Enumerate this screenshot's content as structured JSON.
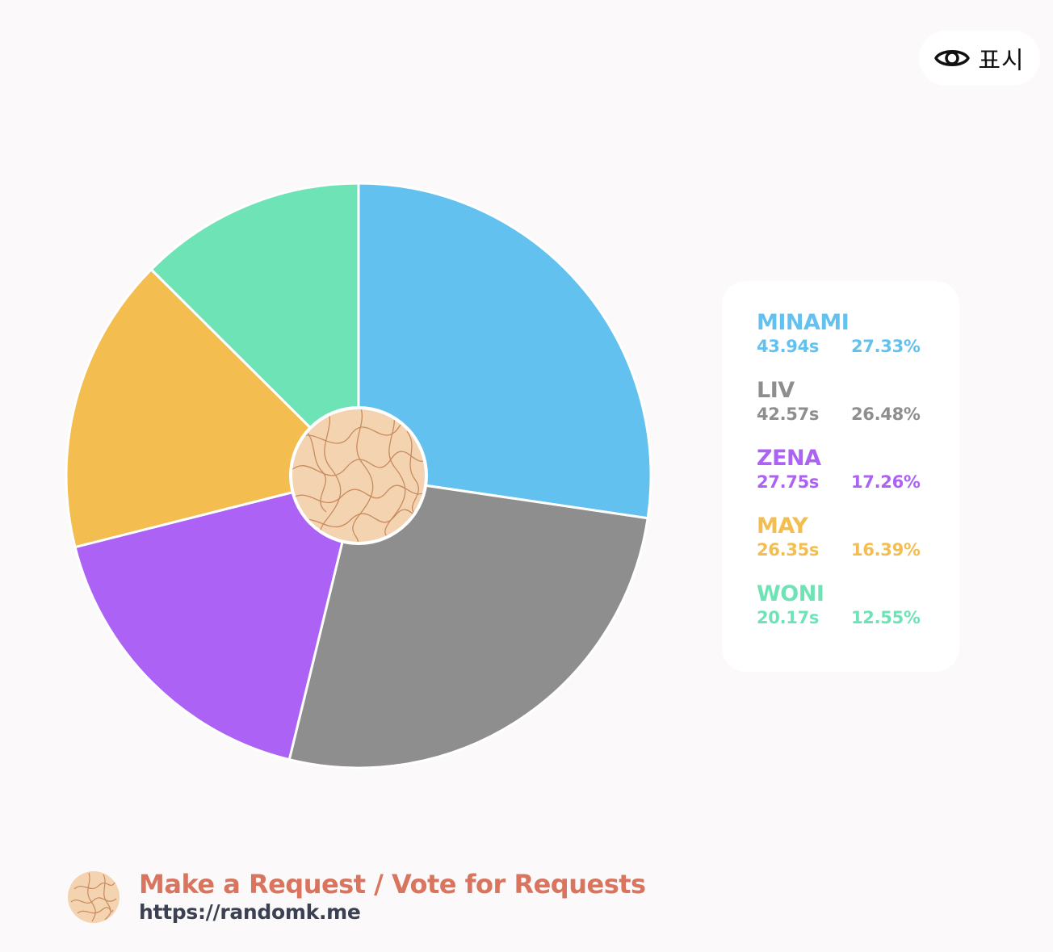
{
  "toggle": {
    "label": "표시",
    "icon": "eye-icon"
  },
  "chart_data": {
    "type": "pie",
    "unit": "s",
    "series": [
      {
        "name": "MINAMI",
        "value": 43.94,
        "value_label": "43.94s",
        "percent": 27.33,
        "percent_label": "27.33%",
        "color": "#62c1ee"
      },
      {
        "name": "LIV",
        "value": 42.57,
        "value_label": "42.57s",
        "percent": 26.48,
        "percent_label": "26.48%",
        "color": "#8e8e8e"
      },
      {
        "name": "ZENA",
        "value": 27.75,
        "value_label": "27.75s",
        "percent": 17.26,
        "percent_label": "17.26%",
        "color": "#ab62f5"
      },
      {
        "name": "MAY",
        "value": 26.35,
        "value_label": "26.35s",
        "percent": 16.39,
        "percent_label": "16.39%",
        "color": "#f3be4f"
      },
      {
        "name": "WONI",
        "value": 20.17,
        "value_label": "20.17s",
        "percent": 12.55,
        "percent_label": "12.55%",
        "color": "#6ee3b5"
      }
    ],
    "legend_position": "right",
    "center_image": "texture-logo"
  },
  "footer": {
    "request_text": "Make a Request / Vote for Requests",
    "url": "https://randomk.me"
  }
}
